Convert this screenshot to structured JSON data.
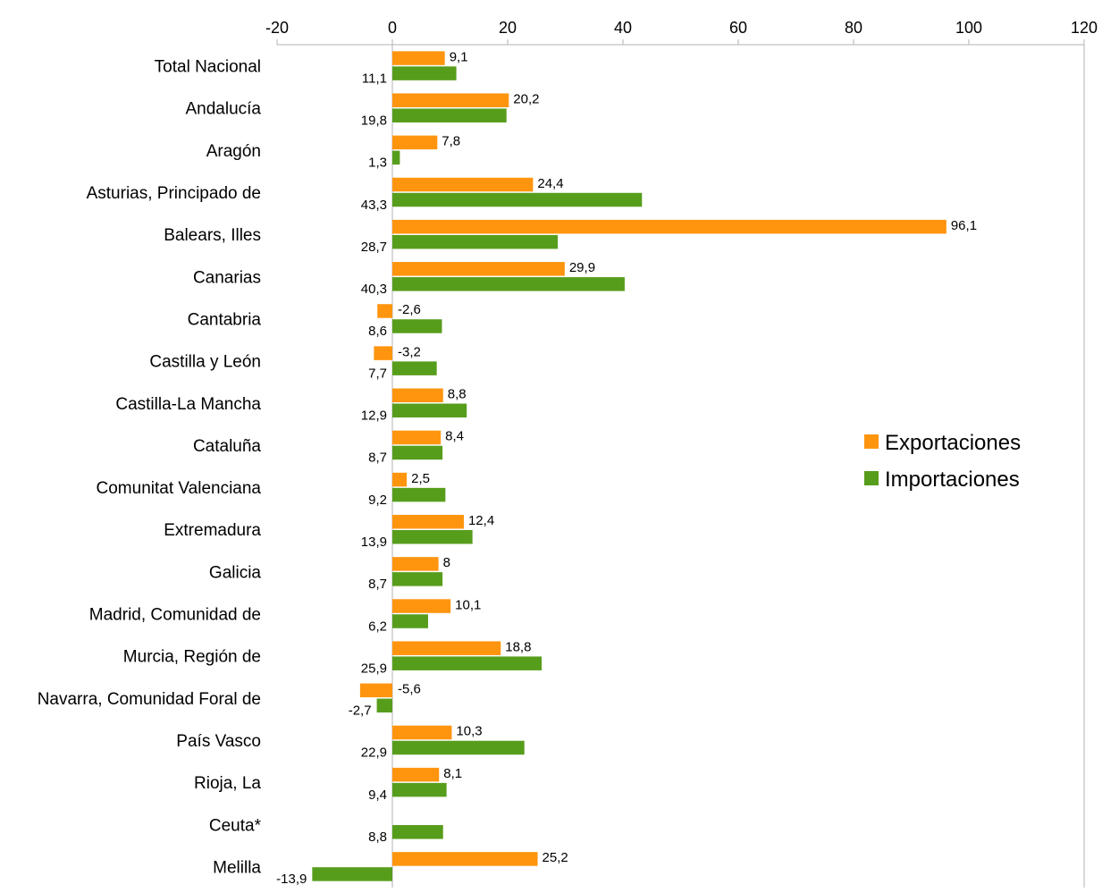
{
  "chart_data": {
    "type": "bar",
    "orientation": "horizontal",
    "title": "",
    "xlabel": "",
    "ylabel": "",
    "xlim": [
      -20,
      120
    ],
    "x_ticks": [
      -20,
      0,
      20,
      40,
      60,
      80,
      100,
      120
    ],
    "x_axis_position": "top",
    "grid": false,
    "legend": "right",
    "categories": [
      "Total Nacional",
      "Andalucía",
      "Aragón",
      "Asturias, Principado de",
      "Balears, Illes",
      "Canarias",
      "Cantabria",
      "Castilla y León",
      "Castilla-La Mancha",
      "Cataluña",
      "Comunitat Valenciana",
      "Extremadura",
      "Galicia",
      "Madrid, Comunidad de",
      "Murcia, Región de",
      "Navarra, Comunidad Foral de",
      "País Vasco",
      "Rioja, La",
      "Ceuta*",
      "Melilla"
    ],
    "series": [
      {
        "name": "Exportaciones",
        "color": "#ff950e",
        "values": [
          9.1,
          20.2,
          7.8,
          24.4,
          96.1,
          29.9,
          -2.6,
          -3.2,
          8.8,
          8.4,
          2.5,
          12.4,
          8,
          10.1,
          18.8,
          -5.6,
          10.3,
          8.1,
          null,
          25.2
        ],
        "labels": [
          "9,1",
          "20,2",
          "7,8",
          "24,4",
          "96,1",
          "29,9",
          "-2,6",
          "-3,2",
          "8,8",
          "8,4",
          "2,5",
          "12,4",
          "8",
          "10,1",
          "18,8",
          "-5,6",
          "10,3",
          "8,1",
          "",
          "25,2"
        ]
      },
      {
        "name": "Importaciones",
        "color": "#579d1c",
        "values": [
          11.1,
          19.8,
          1.3,
          43.3,
          28.7,
          40.3,
          8.6,
          7.7,
          12.9,
          8.7,
          9.2,
          13.9,
          8.7,
          6.2,
          25.9,
          -2.7,
          22.9,
          9.4,
          8.8,
          -13.9
        ],
        "labels": [
          "11,1",
          "19,8",
          "1,3",
          "43,3",
          "28,7",
          "40,3",
          "8,6",
          "7,7",
          "12,9",
          "8,7",
          "9,2",
          "13,9",
          "8,7",
          "6,2",
          "25,9",
          "-2,7",
          "22,9",
          "9,4",
          "8,8",
          "-13,9"
        ]
      }
    ]
  }
}
